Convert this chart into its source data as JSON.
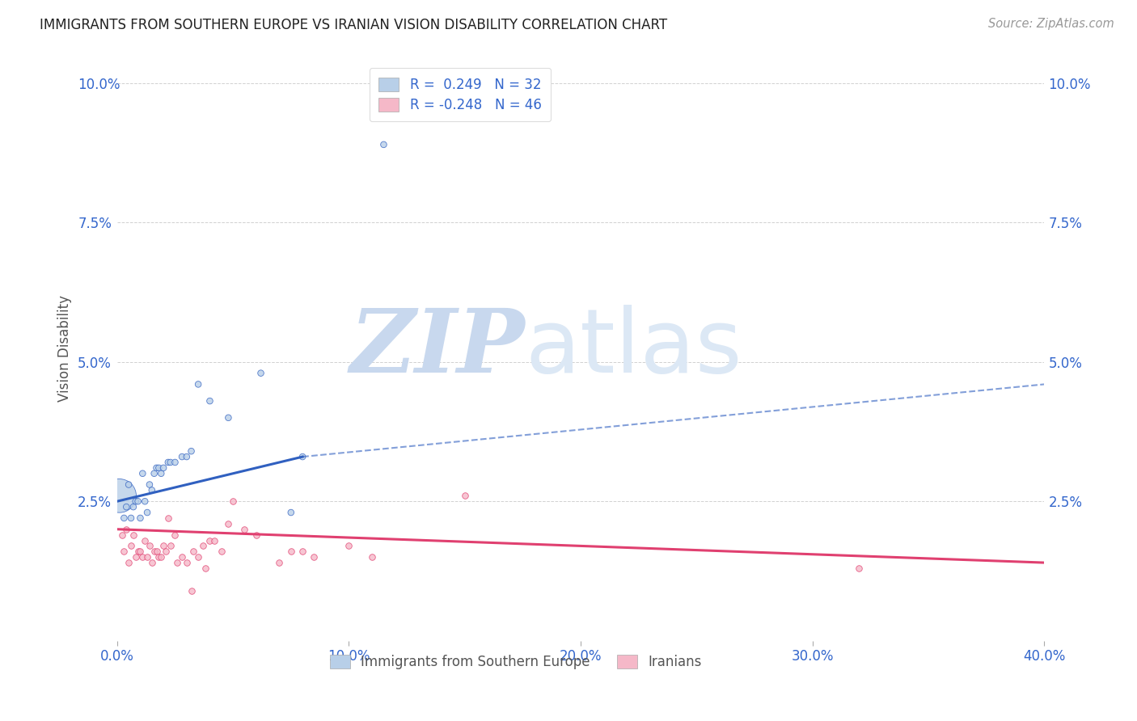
{
  "title": "IMMIGRANTS FROM SOUTHERN EUROPE VS IRANIAN VISION DISABILITY CORRELATION CHART",
  "source": "Source: ZipAtlas.com",
  "xlabel_blue": "Immigrants from Southern Europe",
  "xlabel_pink": "Iranians",
  "ylabel": "Vision Disability",
  "x_min": 0.0,
  "x_max": 0.4,
  "y_min": 0.0,
  "y_max": 0.105,
  "yticks": [
    0.025,
    0.05,
    0.075,
    0.1
  ],
  "ytick_labels": [
    "2.5%",
    "5.0%",
    "7.5%",
    "10.0%"
  ],
  "xticks": [
    0.0,
    0.1,
    0.2,
    0.3,
    0.4
  ],
  "xtick_labels": [
    "0.0%",
    "10.0%",
    "20.0%",
    "30.0%",
    "40.0%"
  ],
  "color_blue": "#b8cfe8",
  "color_pink": "#f5b8c8",
  "line_blue": "#3060c0",
  "line_pink": "#e04070",
  "R_blue": 0.249,
  "N_blue": 32,
  "R_pink": -0.248,
  "N_pink": 46,
  "blue_points": [
    [
      0.001,
      0.026,
      900
    ],
    [
      0.003,
      0.022,
      30
    ],
    [
      0.004,
      0.024,
      30
    ],
    [
      0.005,
      0.028,
      30
    ],
    [
      0.006,
      0.022,
      30
    ],
    [
      0.007,
      0.024,
      30
    ],
    [
      0.008,
      0.025,
      30
    ],
    [
      0.009,
      0.025,
      30
    ],
    [
      0.01,
      0.022,
      30
    ],
    [
      0.011,
      0.03,
      30
    ],
    [
      0.012,
      0.025,
      30
    ],
    [
      0.013,
      0.023,
      30
    ],
    [
      0.014,
      0.028,
      30
    ],
    [
      0.015,
      0.027,
      30
    ],
    [
      0.016,
      0.03,
      30
    ],
    [
      0.017,
      0.031,
      30
    ],
    [
      0.018,
      0.031,
      30
    ],
    [
      0.019,
      0.03,
      30
    ],
    [
      0.02,
      0.031,
      30
    ],
    [
      0.022,
      0.032,
      30
    ],
    [
      0.023,
      0.032,
      30
    ],
    [
      0.025,
      0.032,
      30
    ],
    [
      0.028,
      0.033,
      30
    ],
    [
      0.03,
      0.033,
      30
    ],
    [
      0.032,
      0.034,
      30
    ],
    [
      0.035,
      0.046,
      30
    ],
    [
      0.04,
      0.043,
      30
    ],
    [
      0.048,
      0.04,
      30
    ],
    [
      0.062,
      0.048,
      30
    ],
    [
      0.075,
      0.023,
      30
    ],
    [
      0.115,
      0.089,
      30
    ],
    [
      0.08,
      0.033,
      30
    ]
  ],
  "pink_points": [
    [
      0.002,
      0.019
    ],
    [
      0.003,
      0.016
    ],
    [
      0.004,
      0.02
    ],
    [
      0.005,
      0.014
    ],
    [
      0.006,
      0.017
    ],
    [
      0.007,
      0.019
    ],
    [
      0.008,
      0.015
    ],
    [
      0.009,
      0.016
    ],
    [
      0.01,
      0.016
    ],
    [
      0.011,
      0.015
    ],
    [
      0.012,
      0.018
    ],
    [
      0.013,
      0.015
    ],
    [
      0.014,
      0.017
    ],
    [
      0.015,
      0.014
    ],
    [
      0.016,
      0.016
    ],
    [
      0.017,
      0.016
    ],
    [
      0.018,
      0.015
    ],
    [
      0.019,
      0.015
    ],
    [
      0.02,
      0.017
    ],
    [
      0.021,
      0.016
    ],
    [
      0.022,
      0.022
    ],
    [
      0.023,
      0.017
    ],
    [
      0.025,
      0.019
    ],
    [
      0.026,
      0.014
    ],
    [
      0.028,
      0.015
    ],
    [
      0.03,
      0.014
    ],
    [
      0.032,
      0.009
    ],
    [
      0.033,
      0.016
    ],
    [
      0.035,
      0.015
    ],
    [
      0.037,
      0.017
    ],
    [
      0.038,
      0.013
    ],
    [
      0.04,
      0.018
    ],
    [
      0.042,
      0.018
    ],
    [
      0.045,
      0.016
    ],
    [
      0.048,
      0.021
    ],
    [
      0.05,
      0.025
    ],
    [
      0.055,
      0.02
    ],
    [
      0.06,
      0.019
    ],
    [
      0.07,
      0.014
    ],
    [
      0.075,
      0.016
    ],
    [
      0.08,
      0.016
    ],
    [
      0.085,
      0.015
    ],
    [
      0.1,
      0.017
    ],
    [
      0.11,
      0.015
    ],
    [
      0.15,
      0.026
    ],
    [
      0.32,
      0.013
    ]
  ],
  "watermark_zip": "ZIP",
  "watermark_atlas": "atlas",
  "watermark_color": "#dce8f5",
  "background_color": "#ffffff",
  "grid_color": "#cccccc",
  "trend_line_start_x": 0.0,
  "trend_line_blue_solid_end": 0.08,
  "trend_line_dashed_end": 0.4,
  "blue_trend_y0": 0.025,
  "blue_trend_y_end_solid": 0.033,
  "blue_trend_y_start_dashed": 0.033,
  "blue_trend_y_end_dashed": 0.046,
  "pink_trend_y0": 0.02,
  "pink_trend_y_end": 0.014
}
